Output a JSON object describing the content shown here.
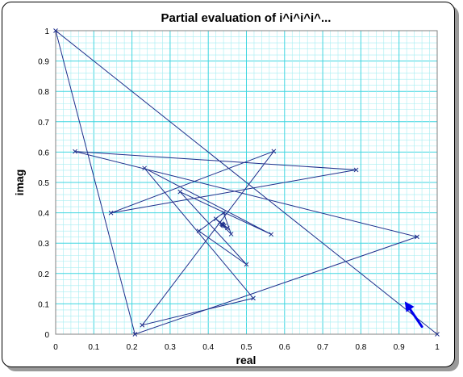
{
  "chart_data": {
    "type": "scatter",
    "title": "Partial evaluation of i^i^i^i^...",
    "xlabel": "real",
    "ylabel": "imag",
    "xlim": [
      0,
      1
    ],
    "ylim": [
      0,
      1
    ],
    "xticks": [
      "0",
      "0.1",
      "0.2",
      "0.3",
      "0.4",
      "0.5",
      "0.6",
      "0.7",
      "0.8",
      "0.9",
      "1"
    ],
    "yticks": [
      "0",
      "0.1",
      "0.2",
      "0.3",
      "0.4",
      "0.5",
      "0.6",
      "0.7",
      "0.8",
      "0.9",
      "1"
    ],
    "grid": true,
    "legend": "none",
    "colors": {
      "line": "#1f2f8c",
      "major_grid": "#3fd6e0",
      "minor_grid": "#a6eef2",
      "arrow": "#0000ee"
    },
    "series": [
      {
        "x": [
          1,
          0,
          0.2079,
          0.9472,
          0.0508,
          0.7877,
          0.145,
          0.5716,
          0.2268,
          0.518,
          0.2328,
          0.5649,
          0.3262,
          0.5,
          0.3754,
          0.44,
          0.46,
          0.42,
          0.45,
          0.43,
          0.442,
          0.435,
          0.439,
          0.437,
          0.438
        ],
        "y": [
          0,
          1,
          0,
          0.3208,
          0.602,
          0.5414,
          0.3996,
          0.6027,
          0.03,
          0.1186,
          0.547,
          0.329,
          0.469,
          0.23,
          0.34,
          0.4,
          0.33,
          0.38,
          0.35,
          0.368,
          0.357,
          0.364,
          0.359,
          0.362,
          0.361
        ]
      }
    ],
    "annotation": {
      "type": "arrow",
      "from": [
        0.96,
        0.025
      ],
      "to": [
        0.915,
        0.108
      ]
    }
  }
}
